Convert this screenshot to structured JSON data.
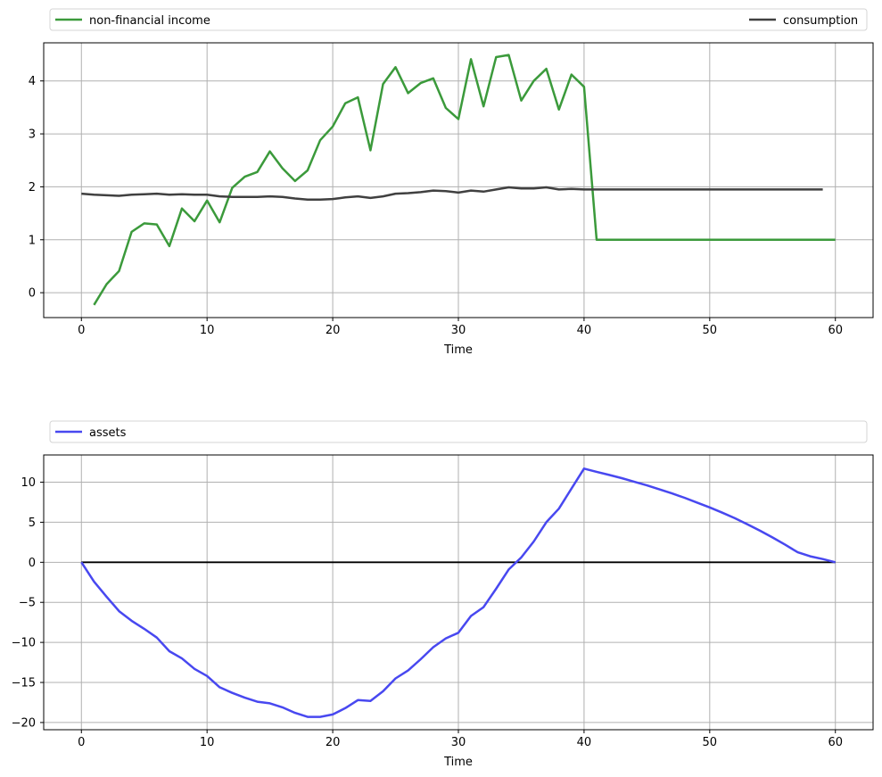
{
  "chart_data": [
    {
      "type": "line",
      "title": "",
      "xlabel": "Time",
      "ylabel": "",
      "xlim": [
        -3,
        63
      ],
      "ylim": [
        -0.47,
        4.72
      ],
      "xticks": [
        0,
        10,
        20,
        30,
        40,
        50,
        60
      ],
      "yticks": [
        0,
        1,
        2,
        3,
        4
      ],
      "grid": true,
      "legend": "top, spanning full width above plot",
      "series": [
        {
          "name": "non-financial income",
          "color": "#3b9a3b",
          "x": [
            1,
            2,
            3,
            4,
            5,
            6,
            7,
            8,
            9,
            10,
            11,
            12,
            13,
            14,
            15,
            16,
            17,
            18,
            19,
            20,
            21,
            22,
            23,
            24,
            25,
            26,
            27,
            28,
            29,
            30,
            31,
            32,
            33,
            34,
            35,
            36,
            37,
            38,
            39,
            40,
            41,
            42,
            43,
            44,
            45,
            46,
            47,
            48,
            49,
            50,
            51,
            52,
            53,
            54,
            55,
            56,
            57,
            58,
            59,
            60
          ],
          "values": [
            -0.23,
            0.16,
            0.41,
            1.15,
            1.31,
            1.29,
            0.88,
            1.59,
            1.35,
            1.74,
            1.33,
            1.98,
            2.19,
            2.28,
            2.67,
            2.35,
            2.11,
            2.31,
            2.88,
            3.14,
            3.58,
            3.69,
            2.69,
            3.94,
            4.26,
            3.77,
            3.96,
            4.05,
            3.49,
            3.28,
            4.41,
            3.52,
            4.45,
            4.49,
            3.63,
            4.0,
            4.23,
            3.46,
            4.12,
            3.89,
            1.0,
            1.0,
            1.0,
            1.0,
            1.0,
            1.0,
            1.0,
            1.0,
            1.0,
            1.0,
            1.0,
            1.0,
            1.0,
            1.0,
            1.0,
            1.0,
            1.0,
            1.0,
            1.0,
            1.0
          ]
        },
        {
          "name": "consumption",
          "color": "#404040",
          "x": [
            0,
            1,
            2,
            3,
            4,
            5,
            6,
            7,
            8,
            9,
            10,
            11,
            12,
            13,
            14,
            15,
            16,
            17,
            18,
            19,
            20,
            21,
            22,
            23,
            24,
            25,
            26,
            27,
            28,
            29,
            30,
            31,
            32,
            33,
            34,
            35,
            36,
            37,
            38,
            39,
            40,
            41,
            42,
            43,
            44,
            45,
            46,
            47,
            48,
            49,
            50,
            51,
            52,
            53,
            54,
            55,
            56,
            57,
            58,
            59
          ],
          "values": [
            1.87,
            1.85,
            1.84,
            1.83,
            1.85,
            1.86,
            1.87,
            1.85,
            1.86,
            1.85,
            1.85,
            1.82,
            1.81,
            1.81,
            1.81,
            1.82,
            1.81,
            1.78,
            1.76,
            1.76,
            1.77,
            1.8,
            1.82,
            1.79,
            1.82,
            1.87,
            1.88,
            1.9,
            1.93,
            1.92,
            1.89,
            1.93,
            1.91,
            1.95,
            1.99,
            1.97,
            1.97,
            1.99,
            1.95,
            1.96,
            1.95,
            1.95,
            1.95,
            1.95,
            1.95,
            1.95,
            1.95,
            1.95,
            1.95,
            1.95,
            1.95,
            1.95,
            1.95,
            1.95,
            1.95,
            1.95,
            1.95,
            1.95,
            1.95,
            1.95
          ]
        }
      ]
    },
    {
      "type": "line",
      "title": "",
      "xlabel": "Time",
      "ylabel": "",
      "xlim": [
        -3,
        63
      ],
      "ylim": [
        -20.9,
        13.4
      ],
      "xticks": [
        0,
        10,
        20,
        30,
        40,
        50,
        60
      ],
      "yticks": [
        10,
        5,
        0,
        -5,
        -10,
        -15,
        -20
      ],
      "grid": true,
      "legend": "top, spanning full width above plot",
      "hline": {
        "y": 0,
        "color": "#000000"
      },
      "series": [
        {
          "name": "assets",
          "color": "#4848f0",
          "x": [
            0,
            1,
            2,
            3,
            4,
            5,
            6,
            7,
            8,
            9,
            10,
            11,
            12,
            13,
            14,
            15,
            16,
            17,
            18,
            19,
            20,
            21,
            22,
            23,
            24,
            25,
            26,
            27,
            28,
            29,
            30,
            31,
            32,
            33,
            34,
            35,
            36,
            37,
            38,
            39,
            40,
            41,
            42,
            43,
            44,
            45,
            46,
            47,
            48,
            49,
            50,
            51,
            52,
            53,
            54,
            55,
            56,
            57,
            58,
            59,
            60
          ],
          "values": [
            0,
            -2.4,
            -4.3,
            -6.1,
            -7.3,
            -8.3,
            -9.4,
            -11.1,
            -12.0,
            -13.3,
            -14.2,
            -15.6,
            -16.3,
            -16.9,
            -17.4,
            -17.6,
            -18.1,
            -18.8,
            -19.3,
            -19.3,
            -19.0,
            -18.2,
            -17.2,
            -17.3,
            -16.1,
            -14.5,
            -13.5,
            -12.1,
            -10.6,
            -9.5,
            -8.8,
            -6.7,
            -5.6,
            -3.3,
            -0.9,
            0.6,
            2.6,
            5.0,
            6.7,
            9.2,
            11.7,
            11.3,
            10.9,
            10.5,
            10.05,
            9.6,
            9.1,
            8.6,
            8.05,
            7.45,
            6.85,
            6.2,
            5.5,
            4.75,
            3.95,
            3.1,
            2.2,
            1.25,
            0.75,
            0.4,
            0.0
          ]
        }
      ]
    }
  ]
}
